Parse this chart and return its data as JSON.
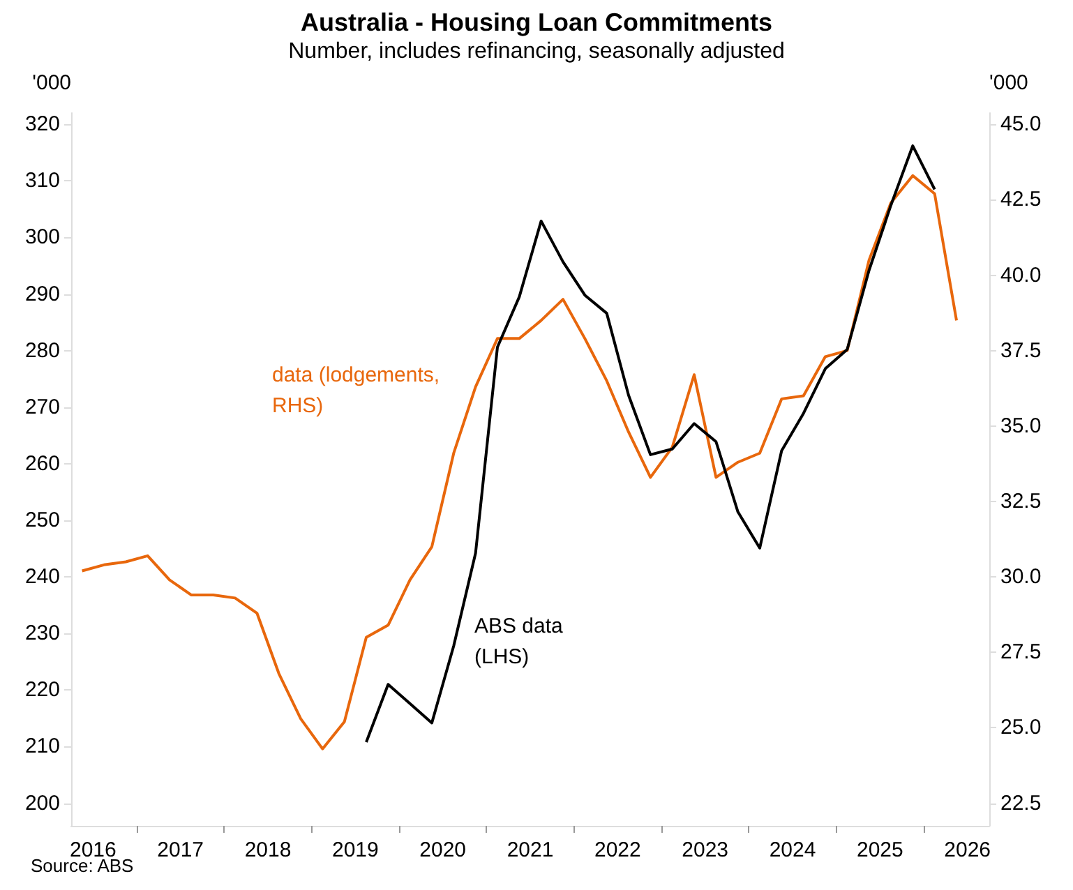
{
  "chart_data": {
    "type": "line",
    "title": "Australia - Housing Loan Commitments",
    "subtitle": "Number, includes refinancing, seasonally adjusted",
    "ylabel": "'000",
    "y2label": "'000",
    "annotations": [
      "Source: ABS"
    ],
    "x": [
      2016.375,
      2016.625,
      2016.875,
      2017.125,
      2017.375,
      2017.625,
      2017.875,
      2018.125,
      2018.375,
      2018.625,
      2018.875,
      2019.125,
      2019.375,
      2019.625,
      2019.875,
      2020.125,
      2020.375,
      2020.625,
      2020.875,
      2021.125,
      2021.375,
      2021.625,
      2021.875,
      2022.125,
      2022.375,
      2022.625,
      2022.875,
      2023.125,
      2023.375,
      2023.625,
      2023.875,
      2024.125,
      2024.375,
      2024.625,
      2024.875,
      2025.125,
      2025.375,
      2025.625,
      2025.875,
      2026.125,
      2026.375
    ],
    "series": [
      {
        "name": "data (lodgements, RHS)",
        "color": "#e8670c",
        "axis": "y2",
        "values": [
          30.2,
          30.4,
          30.5,
          30.7,
          29.9,
          29.4,
          29.4,
          29.3,
          28.8,
          26.8,
          25.3,
          24.3,
          25.2,
          28.0,
          28.4,
          29.9,
          31.0,
          34.1,
          36.3,
          37.9,
          37.9,
          38.5,
          39.2,
          37.9,
          36.5,
          34.8,
          33.3,
          34.3,
          36.7,
          33.3,
          33.8,
          34.1,
          35.9,
          36.0,
          37.3,
          37.5,
          40.5,
          42.4,
          43.3,
          42.7,
          38.5
        ]
      },
      {
        "name": "ABS data (LHS)",
        "color": "#000000",
        "values": [
          null,
          null,
          null,
          null,
          null,
          null,
          null,
          null,
          null,
          null,
          null,
          null,
          null,
          210.8,
          221.0,
          217.6,
          214.2,
          227.8,
          244.2,
          280.6,
          289.5,
          302.9,
          295.7,
          289.8,
          286.6,
          272.1,
          261.6,
          262.6,
          267.1,
          263.9,
          251.5,
          245.1,
          262.3,
          268.9,
          276.8,
          280.2,
          294.2,
          305.7,
          316.2,
          308.5,
          null
        ]
      }
    ],
    "xlim": [
      2016.25,
      2026.75
    ],
    "xticks": [
      {
        "value": 2016.5,
        "label": "2016"
      },
      {
        "value": 2017,
        "label": null
      },
      {
        "value": 2017.5,
        "label": "2017"
      },
      {
        "value": 2018,
        "label": null
      },
      {
        "value": 2018.5,
        "label": "2018"
      },
      {
        "value": 2019,
        "label": null
      },
      {
        "value": 2019.5,
        "label": "2019"
      },
      {
        "value": 2020,
        "label": null
      },
      {
        "value": 2020.5,
        "label": "2020"
      },
      {
        "value": 2021,
        "label": null
      },
      {
        "value": 2021.5,
        "label": "2021"
      },
      {
        "value": 2022,
        "label": null
      },
      {
        "value": 2022.5,
        "label": "2022"
      },
      {
        "value": 2023,
        "label": null
      },
      {
        "value": 2023.5,
        "label": "2023"
      },
      {
        "value": 2024,
        "label": null
      },
      {
        "value": 2024.5,
        "label": "2024"
      },
      {
        "value": 2025,
        "label": null
      },
      {
        "value": 2025.5,
        "label": "2025"
      },
      {
        "value": 2026,
        "label": null
      },
      {
        "value": 2026.5,
        "label": "2026"
      }
    ],
    "ylim": [
      196,
      322
    ],
    "yticks": [
      200,
      210,
      220,
      230,
      240,
      250,
      260,
      270,
      280,
      290,
      300,
      310,
      320
    ],
    "y2lim": [
      21.75,
      45.375
    ],
    "y2ticks": [
      {
        "value": 22.5,
        "label": "22.5"
      },
      {
        "value": 25,
        "label": "25.0"
      },
      {
        "value": 27.5,
        "label": "27.5"
      },
      {
        "value": 30,
        "label": "30.0"
      },
      {
        "value": 32.5,
        "label": "32.5"
      },
      {
        "value": 35,
        "label": "35.0"
      },
      {
        "value": 37.5,
        "label": "37.5"
      },
      {
        "value": 40,
        "label": "40.0"
      },
      {
        "value": 42.5,
        "label": "42.5"
      },
      {
        "value": 45,
        "label": "45.0"
      }
    ],
    "grid": false,
    "legend": false,
    "marker": "none",
    "line_style": "solid"
  }
}
